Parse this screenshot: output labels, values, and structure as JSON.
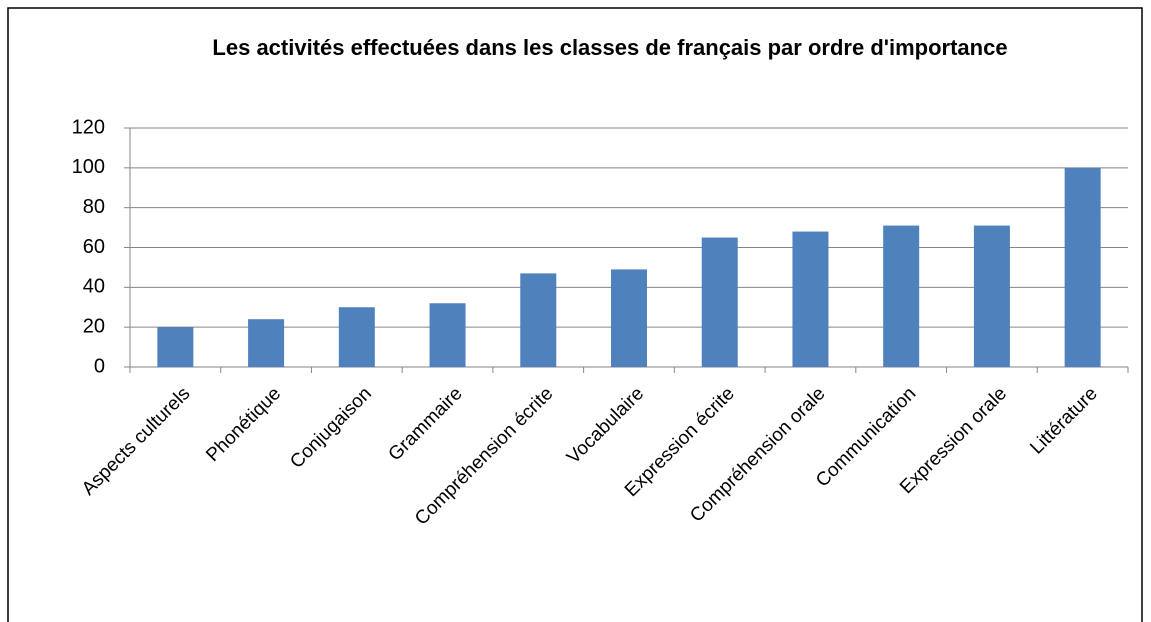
{
  "chart_data": {
    "type": "bar",
    "title": "Les activités effectuées dans les classes de français par ordre d'importance",
    "categories": [
      "Aspects culturels",
      "Phonétique",
      "Conjugaison",
      "Grammaire",
      "Compréhension écrite",
      "Vocabulaire",
      "Expression écrite",
      "Compréhension orale",
      "Communication",
      "Expression orale",
      "Littérature"
    ],
    "values": [
      20,
      24,
      30,
      32,
      47,
      49,
      65,
      68,
      71,
      71,
      100
    ],
    "color": "#4f81bd",
    "ylim": [
      0,
      120
    ],
    "yticks": [
      0,
      20,
      40,
      60,
      80,
      100,
      120
    ],
    "grid": true
  }
}
